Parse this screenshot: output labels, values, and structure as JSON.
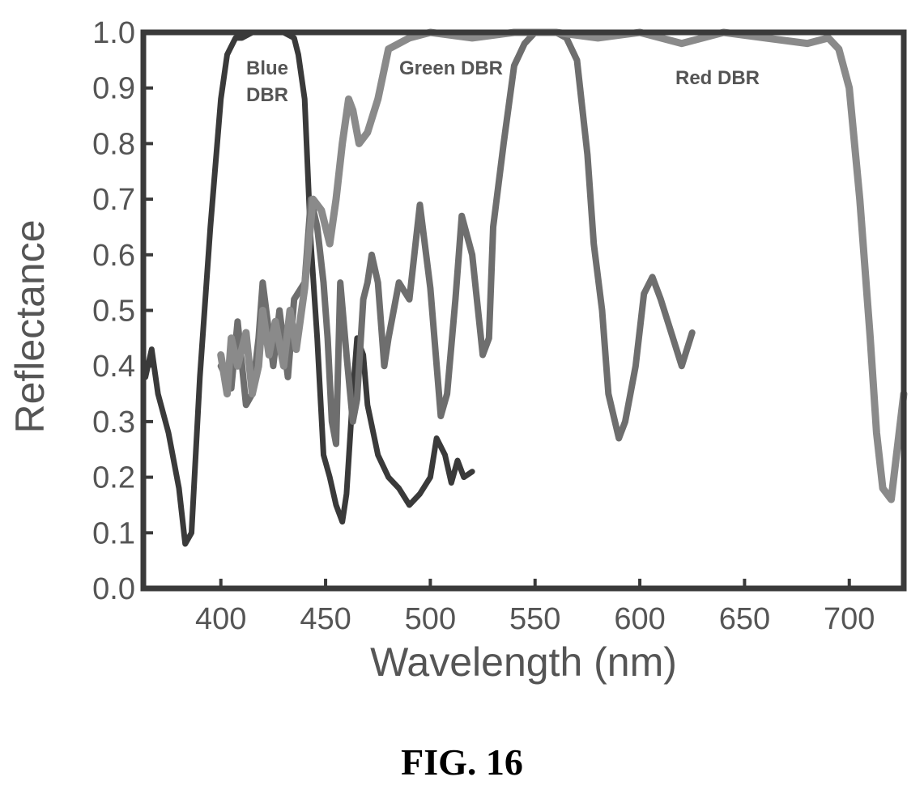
{
  "figure_caption": "FIG. 16",
  "chart_data": {
    "type": "line",
    "xlabel": "Wavelength (nm)",
    "ylabel": "Reflectance",
    "xlim": [
      363,
      726
    ],
    "ylim": [
      0.0,
      1.0
    ],
    "x_ticks": [
      400,
      450,
      500,
      550,
      600,
      650,
      700
    ],
    "x_tick_labels": [
      "400",
      "450",
      "500",
      "550",
      "600",
      "650",
      "700"
    ],
    "y_ticks": [
      0.0,
      0.1,
      0.2,
      0.3,
      0.4,
      0.5,
      0.6,
      0.7,
      0.8,
      0.9,
      1.0
    ],
    "y_tick_labels": [
      "0.0",
      "0.1",
      "0.2",
      "0.3",
      "0.4",
      "0.5",
      "0.6",
      "0.7",
      "0.8",
      "0.9",
      "1.0"
    ],
    "grid": false,
    "colors": {
      "blue_dbr": "#3a3a3a",
      "green_dbr": "#6e6e6e",
      "red_dbr": "#8a8a8a",
      "axes": "#3a3a3a",
      "text": "#555555"
    },
    "series": [
      {
        "name": "Blue DBR",
        "label_lines": [
          "Blue",
          "DBR"
        ],
        "x": [
          364,
          367,
          370,
          375,
          380,
          383,
          386,
          390,
          395,
          400,
          403,
          407,
          410,
          415,
          420,
          425,
          430,
          435,
          437,
          440,
          443,
          446,
          449,
          452,
          455,
          458,
          460,
          463,
          465,
          468,
          470,
          475,
          480,
          485,
          490,
          495,
          500,
          503,
          507,
          510,
          513,
          516,
          520
        ],
        "y": [
          0.38,
          0.43,
          0.35,
          0.28,
          0.18,
          0.08,
          0.1,
          0.38,
          0.65,
          0.88,
          0.96,
          0.99,
          0.99,
          1.0,
          1.0,
          1.0,
          1.0,
          0.99,
          0.96,
          0.88,
          0.62,
          0.45,
          0.24,
          0.2,
          0.15,
          0.12,
          0.17,
          0.35,
          0.45,
          0.42,
          0.33,
          0.24,
          0.2,
          0.18,
          0.15,
          0.17,
          0.2,
          0.27,
          0.24,
          0.19,
          0.23,
          0.2,
          0.21
        ]
      },
      {
        "name": "Green DBR",
        "x": [
          400,
          405,
          408,
          412,
          415,
          418,
          420,
          425,
          428,
          432,
          435,
          440,
          443,
          446,
          449,
          451,
          453,
          455,
          457,
          460,
          463,
          465,
          468,
          470,
          472,
          475,
          478,
          480,
          485,
          490,
          495,
          500,
          505,
          508,
          512,
          515,
          520,
          525,
          528,
          530,
          535,
          540,
          545,
          550,
          555,
          560,
          565,
          570,
          575,
          578,
          582,
          585,
          590,
          593,
          598,
          602,
          606,
          610,
          615,
          620,
          625
        ],
        "y": [
          0.4,
          0.36,
          0.48,
          0.33,
          0.35,
          0.45,
          0.55,
          0.4,
          0.5,
          0.38,
          0.52,
          0.55,
          0.7,
          0.65,
          0.55,
          0.45,
          0.3,
          0.26,
          0.55,
          0.42,
          0.3,
          0.34,
          0.52,
          0.55,
          0.6,
          0.55,
          0.4,
          0.45,
          0.55,
          0.52,
          0.69,
          0.54,
          0.31,
          0.35,
          0.52,
          0.67,
          0.6,
          0.42,
          0.45,
          0.65,
          0.8,
          0.94,
          0.98,
          1.0,
          1.0,
          1.0,
          0.99,
          0.95,
          0.78,
          0.62,
          0.5,
          0.35,
          0.27,
          0.3,
          0.4,
          0.53,
          0.56,
          0.52,
          0.46,
          0.4,
          0.46
        ]
      },
      {
        "name": "Red DBR",
        "x": [
          400,
          403,
          405,
          408,
          412,
          415,
          418,
          420,
          423,
          426,
          430,
          433,
          436,
          440,
          444,
          448,
          452,
          455,
          458,
          461,
          463,
          466,
          470,
          475,
          480,
          490,
          500,
          520,
          540,
          560,
          580,
          600,
          620,
          640,
          660,
          680,
          690,
          695,
          700,
          705,
          710,
          713,
          716,
          720,
          726
        ],
        "y": [
          0.42,
          0.35,
          0.45,
          0.4,
          0.46,
          0.35,
          0.4,
          0.5,
          0.42,
          0.48,
          0.4,
          0.5,
          0.43,
          0.54,
          0.7,
          0.68,
          0.62,
          0.7,
          0.8,
          0.88,
          0.86,
          0.8,
          0.82,
          0.88,
          0.97,
          0.99,
          1.0,
          0.99,
          1.0,
          1.0,
          0.99,
          1.0,
          0.98,
          1.0,
          0.99,
          0.98,
          0.99,
          0.97,
          0.9,
          0.7,
          0.45,
          0.28,
          0.18,
          0.16,
          0.35
        ]
      }
    ]
  }
}
